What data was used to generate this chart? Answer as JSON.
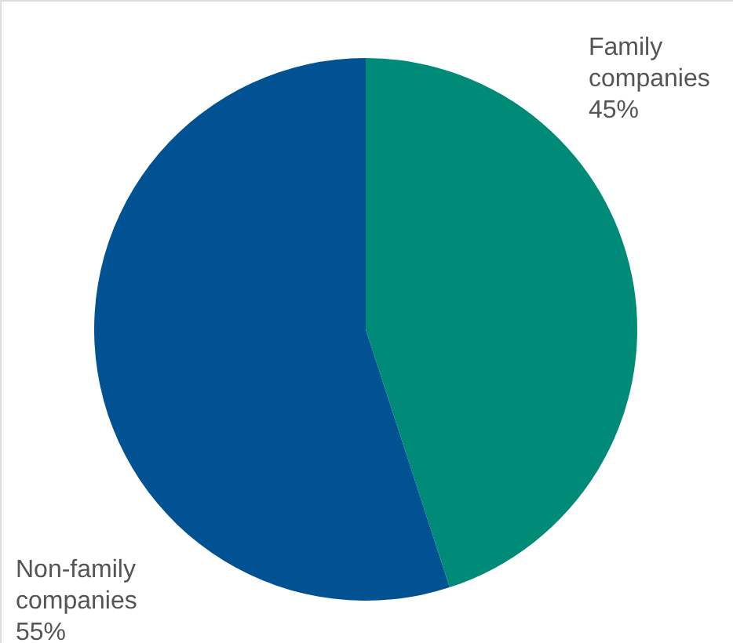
{
  "chart_data": {
    "type": "pie",
    "categories": [
      "Family companies",
      "Non-family companies"
    ],
    "values": [
      45,
      55
    ],
    "colors": [
      "#008a78",
      "#005293"
    ],
    "value_labels": [
      "45%",
      "55%"
    ]
  }
}
